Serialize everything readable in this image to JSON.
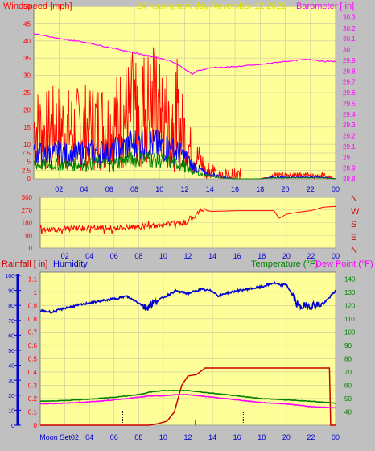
{
  "header": {
    "title": "24 hour graph day   November 12 2021"
  },
  "colors": {
    "background": "#c0c0c0",
    "plot_bg": "#ffff99",
    "grid": "#c8c8a0",
    "wind": "#ff0000",
    "gust": "#ff0000",
    "wind_blue": "#0000ff",
    "wind_green": "#008000",
    "barometer": "#ff00ff",
    "direction": "#ff0000",
    "rain": "#cc0000",
    "humidity": "#0000cc",
    "temperature": "#008000",
    "dewpoint": "#ff00ff",
    "title": "#e0e000",
    "rain_label": "#cc0000",
    "humidity_label": "#0000cc"
  },
  "chart_data": [
    {
      "type": "line",
      "title": "24 hour graph day   November 12 2021",
      "ylabel": "Windspeed [mph]",
      "y2label": "Barometer [ in]",
      "ylim": [
        0,
        50
      ],
      "y2lim": [
        28.8,
        30.4
      ],
      "yticks": [
        "0",
        "2.5",
        "5",
        "7.5",
        "10",
        "15",
        "20",
        "25",
        "30",
        "35",
        "40",
        "45",
        "50"
      ],
      "y2ticks": [
        "28.8",
        "28.9",
        "29",
        "29.1",
        "29.2",
        "29.3",
        "29.4",
        "29.5",
        "29.6",
        "29.7",
        "29.8",
        "29.9",
        "30",
        "30.1",
        "30.2",
        "30.3"
      ],
      "xticks": [
        "02",
        "04",
        "06",
        "08",
        "10",
        "12",
        "14",
        "16",
        "18",
        "20",
        "22",
        "00"
      ],
      "series": [
        {
          "name": "Windspeed [mph]",
          "x": [
            0,
            1,
            2,
            3,
            4,
            5,
            6,
            7,
            8,
            9,
            10,
            11,
            12,
            12.5,
            13,
            13.5,
            14,
            15,
            16,
            17,
            18,
            19,
            20,
            21,
            22,
            23,
            24
          ],
          "values": [
            15,
            14,
            15,
            14,
            15,
            16,
            15,
            18,
            20,
            21,
            19,
            17,
            13,
            8,
            6,
            4,
            3,
            1,
            0,
            0,
            0,
            1,
            1,
            1,
            1,
            1,
            0
          ]
        },
        {
          "name": "Barometer [ in]",
          "x": [
            0,
            2,
            4,
            6,
            8,
            10,
            11,
            12,
            12.6,
            13,
            14,
            16,
            18,
            20,
            22,
            23,
            24
          ],
          "values": [
            30.15,
            30.1,
            30.07,
            30.02,
            29.97,
            29.92,
            29.89,
            29.82,
            29.77,
            29.8,
            29.83,
            29.84,
            29.86,
            29.89,
            29.91,
            29.89,
            29.89
          ]
        }
      ]
    },
    {
      "type": "line",
      "yticks": [
        "0",
        "90",
        "180",
        "270",
        "360"
      ],
      "ylim": [
        0,
        360
      ],
      "y2labels": [
        "N",
        "W",
        "S",
        "E",
        "N"
      ],
      "xticks": [
        "02",
        "04",
        "06",
        "08",
        "10",
        "12",
        "14",
        "16",
        "18",
        "20",
        "22",
        "00"
      ],
      "series": [
        {
          "name": "Wind direction",
          "x": [
            0,
            2,
            4,
            6,
            8,
            10,
            12,
            12.4,
            13,
            14,
            16,
            18,
            19,
            19.4,
            20,
            21,
            22,
            23,
            24
          ],
          "values": [
            130,
            135,
            140,
            140,
            150,
            165,
            185,
            210,
            270,
            260,
            265,
            265,
            265,
            210,
            240,
            255,
            265,
            290,
            295
          ]
        }
      ]
    },
    {
      "type": "line",
      "ylabel": "Rainfall [ in]",
      "ylabel2": "Humidity",
      "y2label": "Temperature (°F)",
      "y3label": "Dew Point (°F)",
      "ylim": [
        0,
        1.15
      ],
      "y2lim": [
        30,
        145
      ],
      "yticks": [
        "0",
        "0.1",
        "0.2",
        "0.3",
        "0.4",
        "0.5",
        "0.6",
        "0.7",
        "0.8",
        "0.9",
        "1",
        "1.1"
      ],
      "humidity_ticks": [
        "0",
        "10",
        "20",
        "30",
        "40",
        "50",
        "60",
        "70",
        "80",
        "90",
        "100"
      ],
      "y2ticks": [
        "40",
        "50",
        "60",
        "70",
        "80",
        "90",
        "100",
        "110",
        "120",
        "130",
        "140"
      ],
      "xticks": [
        "Moon Set02",
        "04",
        "06",
        "08",
        "10",
        "12",
        "14",
        "16",
        "18",
        "20",
        "22",
        "00"
      ],
      "series": [
        {
          "name": "Rainfall [ in]",
          "x": [
            0,
            8.8,
            9.5,
            10.3,
            10.9,
            11.5,
            12,
            12.7,
            13.4,
            14.5,
            16,
            18,
            20,
            22,
            23.5,
            23.6,
            24
          ],
          "values": [
            0,
            0,
            0.01,
            0.03,
            0.1,
            0.3,
            0.37,
            0.38,
            0.43,
            0.43,
            0.43,
            0.43,
            0.43,
            0.43,
            0.43,
            0.0,
            0.0
          ]
        },
        {
          "name": "Humidity",
          "x": [
            0,
            1,
            2,
            4,
            6,
            7,
            8,
            8.6,
            9,
            10,
            11,
            12,
            13,
            14,
            14.5,
            15,
            16,
            18,
            19,
            19.5,
            20,
            21,
            22,
            23,
            24
          ],
          "values": [
            96,
            95,
            98,
            102,
            105,
            107,
            102,
            98,
            101,
            106,
            111,
            109,
            112,
            111,
            107,
            109,
            111,
            114,
            117,
            115,
            116,
            99,
            100,
            101,
            111
          ]
        },
        {
          "name": "Temperature (°F)",
          "x": [
            0,
            2,
            4,
            6,
            8,
            9,
            10,
            11,
            12,
            13,
            14,
            16,
            18,
            20,
            22,
            24
          ],
          "values": [
            48,
            48.5,
            49.5,
            51,
            53,
            55,
            56,
            56,
            56,
            55,
            54,
            52,
            50,
            49,
            48,
            46.5
          ]
        },
        {
          "name": "Dew Point (°F)",
          "x": [
            0,
            2,
            4,
            6,
            8,
            9,
            10,
            11,
            12,
            13,
            14,
            16,
            18,
            20,
            22,
            24
          ],
          "values": [
            46,
            46.5,
            47.5,
            49,
            51,
            52,
            52,
            53,
            53,
            52,
            51,
            49,
            47,
            46,
            44,
            43
          ]
        }
      ]
    }
  ]
}
